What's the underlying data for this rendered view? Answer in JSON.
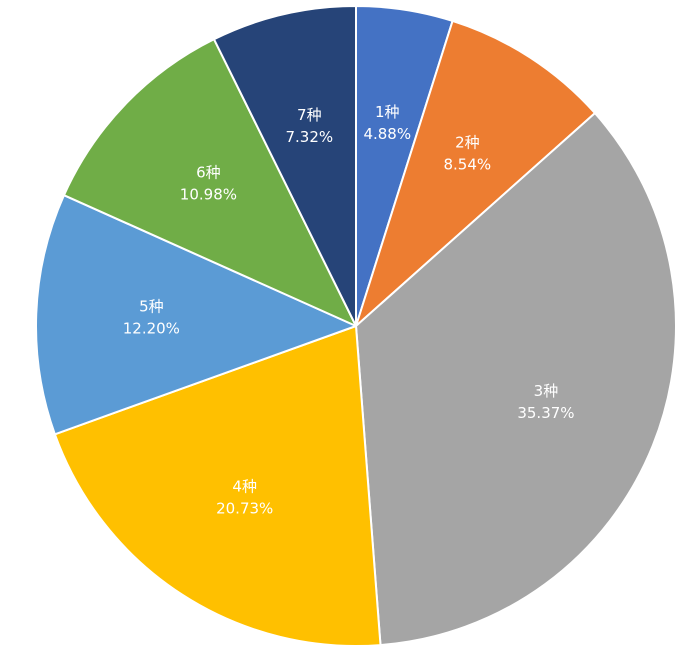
{
  "chart_data": {
    "type": "pie",
    "start_angle_deg": 0,
    "direction": "clockwise",
    "legend": "none",
    "slices": [
      {
        "label": "1种",
        "value": 4.88,
        "value_label": "4.88%",
        "color": "#4472C4"
      },
      {
        "label": "2种",
        "value": 8.54,
        "value_label": "8.54%",
        "color": "#ED7D31"
      },
      {
        "label": "3种",
        "value": 35.37,
        "value_label": "35.37%",
        "color": "#A5A5A5"
      },
      {
        "label": "4种",
        "value": 20.73,
        "value_label": "20.73%",
        "color": "#FFC000"
      },
      {
        "label": "5种",
        "value": 12.2,
        "value_label": "12.20%",
        "color": "#5B9BD5"
      },
      {
        "label": "6种",
        "value": 10.98,
        "value_label": "10.98%",
        "color": "#70AD47"
      },
      {
        "label": "7种",
        "value": 7.32,
        "value_label": "7.32%",
        "color": "#264478"
      }
    ]
  }
}
